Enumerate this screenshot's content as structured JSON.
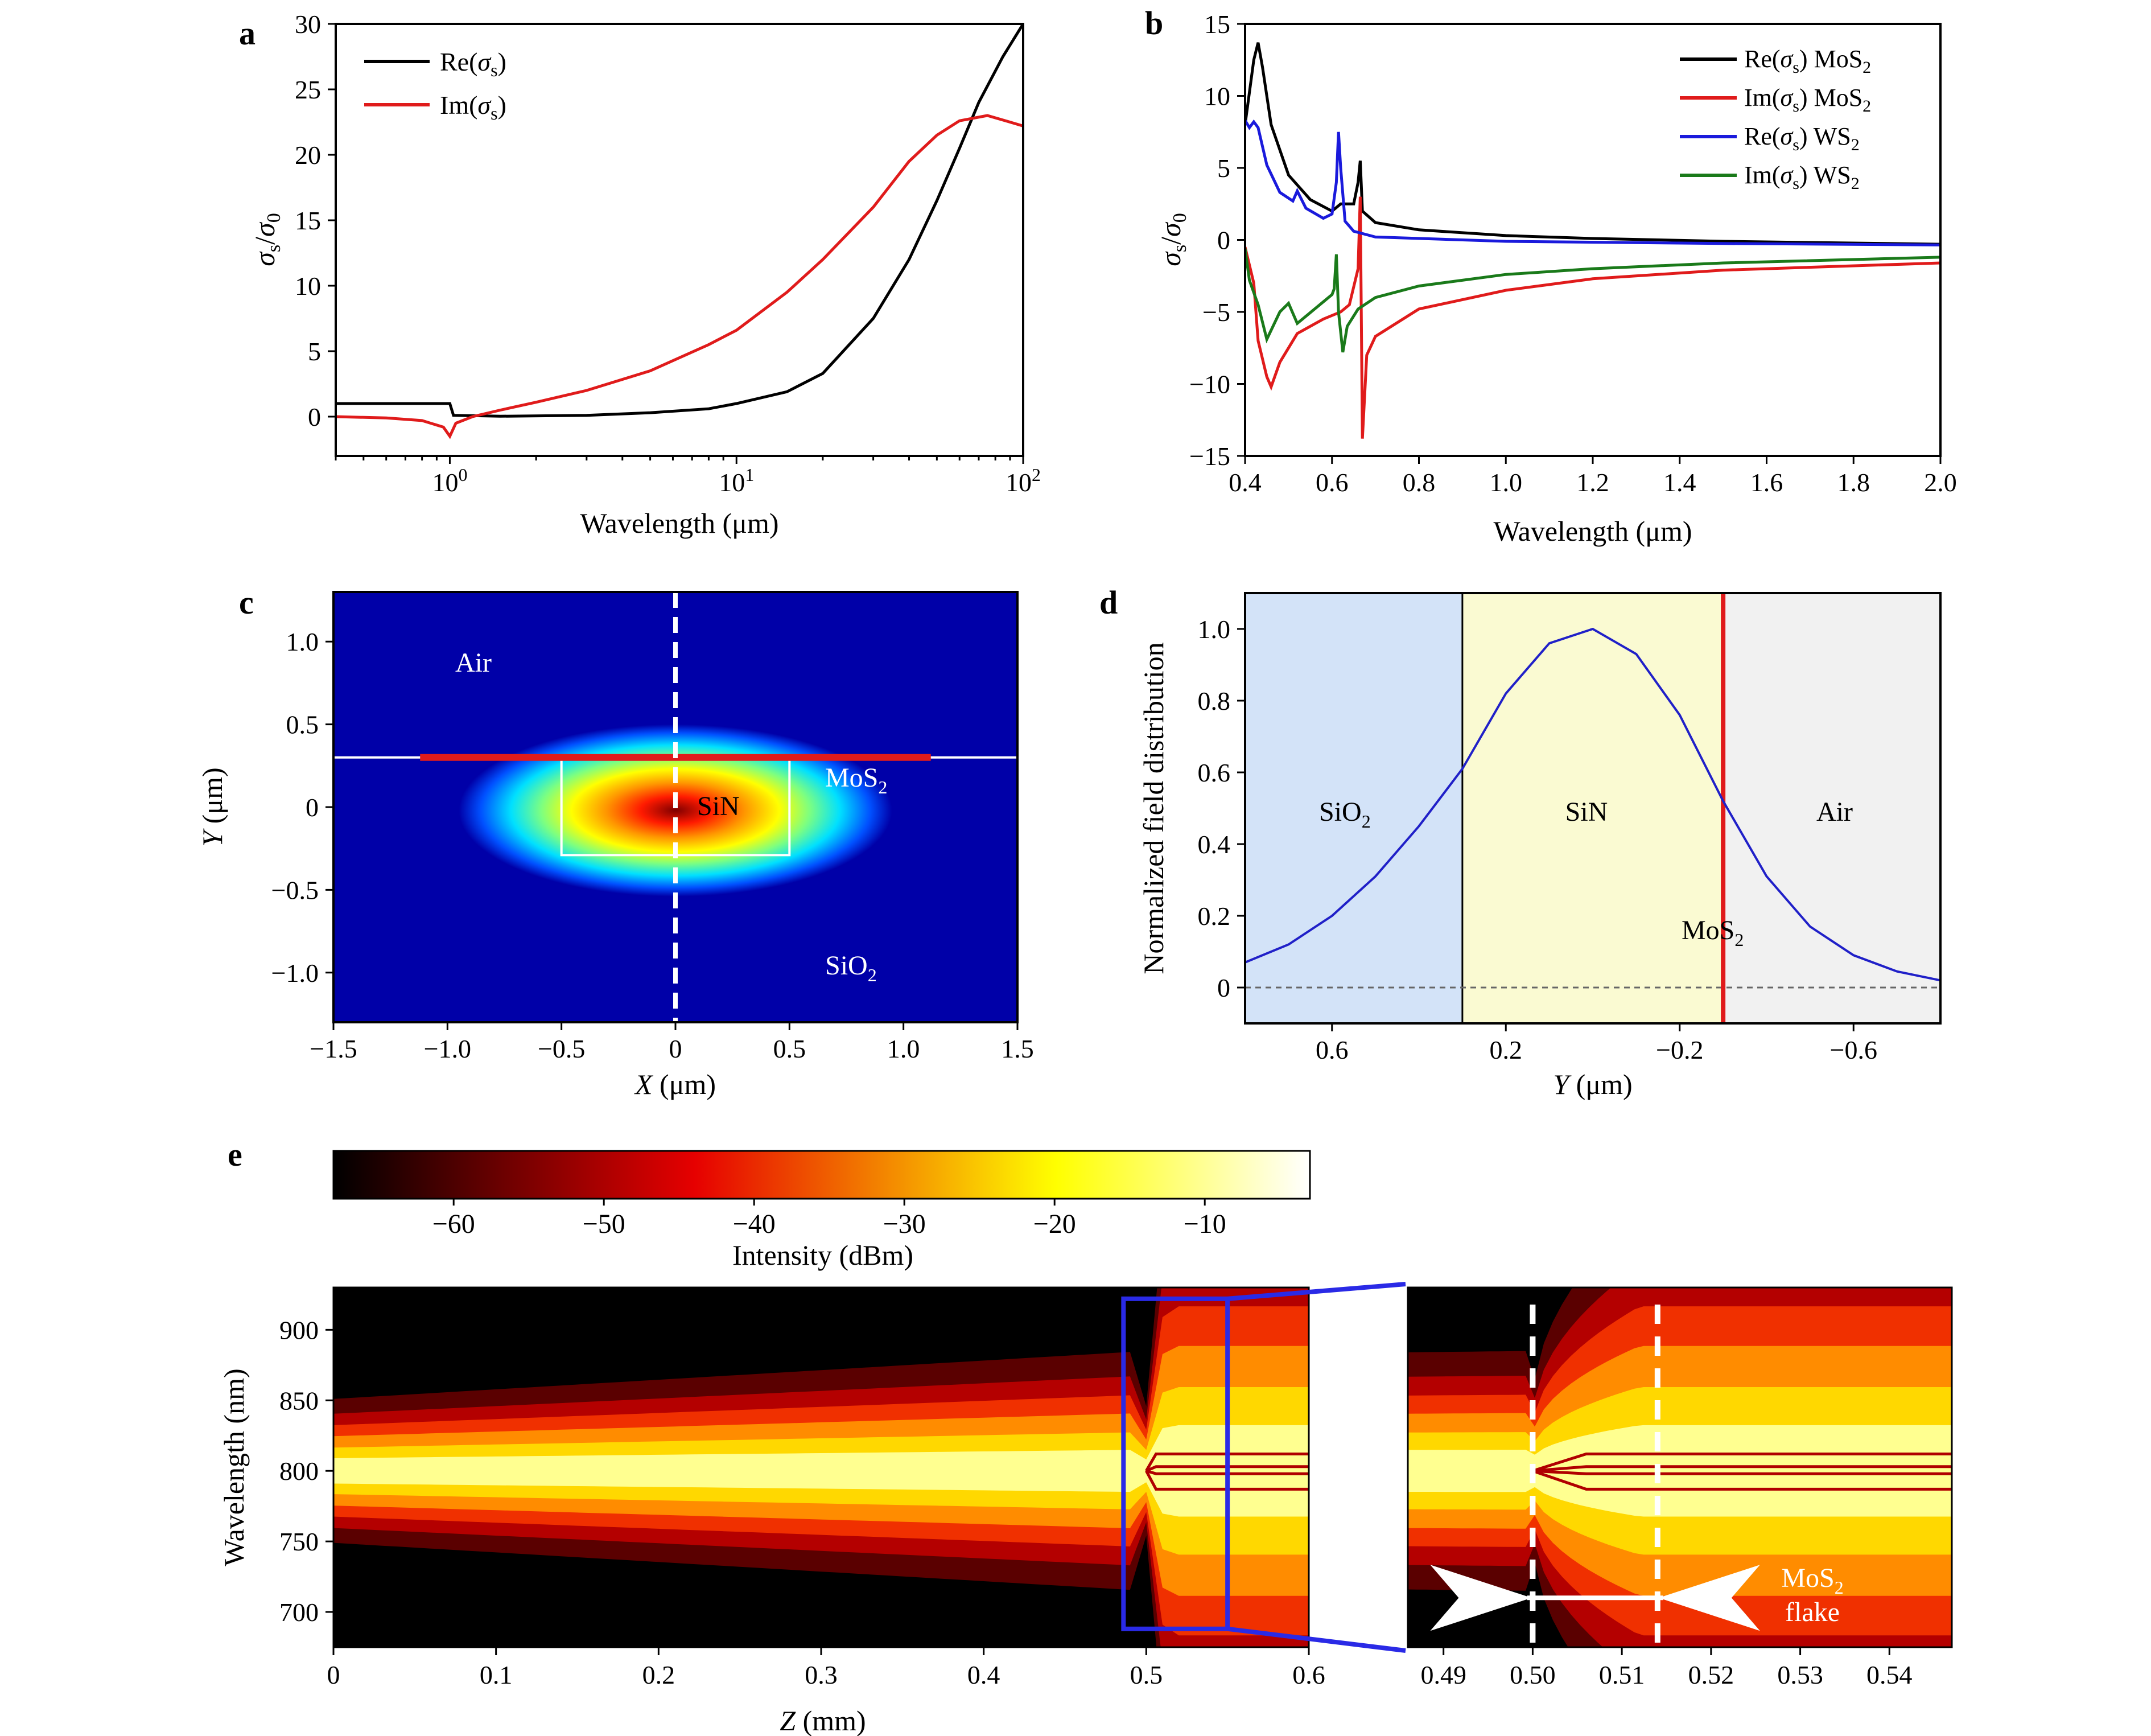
{
  "panel_labels": [
    "a",
    "b",
    "c",
    "d",
    "e"
  ],
  "chart_data": [
    {
      "panel": "a",
      "type": "line",
      "xscale": "log",
      "xlim": [
        0.4,
        100
      ],
      "ylim": [
        -3,
        30
      ],
      "xlabel": "Wavelength (μm)",
      "ylabel": "σs/σ0",
      "xtick_labels": [
        {
          "v": 1,
          "base": "10",
          "exp": "0"
        },
        {
          "v": 10,
          "base": "10",
          "exp": "1"
        },
        {
          "v": 100,
          "base": "10",
          "exp": "2"
        }
      ],
      "ytick_labels": [
        "0",
        "5",
        "10",
        "15",
        "20",
        "25",
        "30"
      ],
      "legend": "top-left",
      "series": [
        {
          "name": "Re(σs)",
          "color": "#000000",
          "points": [
            [
              0.4,
              1
            ],
            [
              1.0,
              1
            ],
            [
              1.03,
              0.1
            ],
            [
              1.5,
              0.03
            ],
            [
              3,
              0.1
            ],
            [
              5,
              0.3
            ],
            [
              8,
              0.6
            ],
            [
              10,
              1.0
            ],
            [
              15,
              1.9
            ],
            [
              20,
              3.3
            ],
            [
              30,
              7.5
            ],
            [
              40,
              12
            ],
            [
              50,
              16.5
            ],
            [
              60,
              20.5
            ],
            [
              70,
              24
            ],
            [
              85,
              27.5
            ],
            [
              100,
              30
            ]
          ]
        },
        {
          "name": "Im(σs)",
          "color": "#e01b1b",
          "points": [
            [
              0.4,
              0
            ],
            [
              0.6,
              -0.1
            ],
            [
              0.8,
              -0.3
            ],
            [
              0.95,
              -0.8
            ],
            [
              1.0,
              -1.5
            ],
            [
              1.05,
              -0.5
            ],
            [
              1.2,
              0
            ],
            [
              1.5,
              0.5
            ],
            [
              2,
              1.1
            ],
            [
              3,
              2.0
            ],
            [
              5,
              3.5
            ],
            [
              8,
              5.5
            ],
            [
              10,
              6.6
            ],
            [
              15,
              9.5
            ],
            [
              20,
              12
            ],
            [
              30,
              16
            ],
            [
              40,
              19.5
            ],
            [
              50,
              21.5
            ],
            [
              60,
              22.6
            ],
            [
              75,
              23
            ],
            [
              90,
              22.5
            ],
            [
              100,
              22.2
            ]
          ]
        }
      ]
    },
    {
      "panel": "b",
      "type": "line",
      "xlim": [
        0.4,
        2.0
      ],
      "ylim": [
        -15,
        15
      ],
      "xlabel": "Wavelength (μm)",
      "ylabel": "σs/σ0",
      "xtick_labels": [
        "0.4",
        "0.6",
        "0.8",
        "1.0",
        "1.2",
        "1.4",
        "1.6",
        "1.8",
        "2.0"
      ],
      "ytick_labels": [
        "−15",
        "−10",
        "−5",
        "0",
        "5",
        "10",
        "15"
      ],
      "legend": "top-right",
      "series": [
        {
          "name": "Re(σs) MoS2",
          "color": "#000000",
          "points": [
            [
              0.4,
              8
            ],
            [
              0.42,
              12.5
            ],
            [
              0.43,
              13.7
            ],
            [
              0.44,
              12
            ],
            [
              0.46,
              8
            ],
            [
              0.5,
              4.5
            ],
            [
              0.55,
              2.8
            ],
            [
              0.6,
              2.0
            ],
            [
              0.62,
              2.5
            ],
            [
              0.65,
              2.5
            ],
            [
              0.66,
              4
            ],
            [
              0.665,
              5.5
            ],
            [
              0.67,
              2
            ],
            [
              0.7,
              1.2
            ],
            [
              0.8,
              0.7
            ],
            [
              1.0,
              0.3
            ],
            [
              1.2,
              0.1
            ],
            [
              1.5,
              -0.1
            ],
            [
              2.0,
              -0.3
            ]
          ]
        },
        {
          "name": "Im(σs) MoS2",
          "color": "#e01b1b",
          "points": [
            [
              0.4,
              -0.5
            ],
            [
              0.42,
              -3
            ],
            [
              0.43,
              -7
            ],
            [
              0.45,
              -9.5
            ],
            [
              0.46,
              -10.2
            ],
            [
              0.48,
              -8.5
            ],
            [
              0.52,
              -6.5
            ],
            [
              0.58,
              -5.5
            ],
            [
              0.62,
              -5
            ],
            [
              0.64,
              -4.5
            ],
            [
              0.66,
              -2
            ],
            [
              0.665,
              3
            ],
            [
              0.67,
              -13.8
            ],
            [
              0.68,
              -8
            ],
            [
              0.7,
              -6.7
            ],
            [
              0.8,
              -4.8
            ],
            [
              1.0,
              -3.5
            ],
            [
              1.2,
              -2.7
            ],
            [
              1.5,
              -2.1
            ],
            [
              2.0,
              -1.6
            ]
          ]
        },
        {
          "name": "Re(σs) WS2",
          "color": "#1a1adc",
          "points": [
            [
              0.4,
              8.3
            ],
            [
              0.41,
              7.8
            ],
            [
              0.42,
              8.2
            ],
            [
              0.43,
              7.8
            ],
            [
              0.45,
              5.2
            ],
            [
              0.48,
              3.3
            ],
            [
              0.51,
              2.7
            ],
            [
              0.52,
              3.4
            ],
            [
              0.54,
              2.2
            ],
            [
              0.58,
              1.5
            ],
            [
              0.6,
              1.8
            ],
            [
              0.61,
              4
            ],
            [
              0.615,
              7.5
            ],
            [
              0.62,
              5
            ],
            [
              0.63,
              1.3
            ],
            [
              0.65,
              0.6
            ],
            [
              0.7,
              0.2
            ],
            [
              1.0,
              -0.1
            ],
            [
              1.5,
              -0.25
            ],
            [
              2.0,
              -0.35
            ]
          ]
        },
        {
          "name": "Im(σs) WS2",
          "color": "#1a7a1a",
          "points": [
            [
              0.4,
              -0.6
            ],
            [
              0.41,
              -2.8
            ],
            [
              0.43,
              -4.5
            ],
            [
              0.45,
              -6.9
            ],
            [
              0.48,
              -5
            ],
            [
              0.5,
              -4.4
            ],
            [
              0.52,
              -5.8
            ],
            [
              0.56,
              -4.8
            ],
            [
              0.6,
              -3.8
            ],
            [
              0.605,
              -3.4
            ],
            [
              0.61,
              -1
            ],
            [
              0.615,
              -5
            ],
            [
              0.625,
              -7.8
            ],
            [
              0.635,
              -6
            ],
            [
              0.66,
              -4.8
            ],
            [
              0.7,
              -4
            ],
            [
              0.8,
              -3.2
            ],
            [
              1.0,
              -2.4
            ],
            [
              1.2,
              -2.0
            ],
            [
              1.5,
              -1.6
            ],
            [
              2.0,
              -1.2
            ]
          ]
        }
      ]
    },
    {
      "panel": "c",
      "type": "heatmap",
      "xlim": [
        -1.5,
        1.5
      ],
      "ylim": [
        -1.3,
        1.3
      ],
      "xlabel": "X (μm)",
      "ylabel": "Y (μm)",
      "xtick_labels": [
        "−1.5",
        "−1.0",
        "−0.5",
        "0",
        "0.5",
        "1.0",
        "1.5"
      ],
      "ytick_labels": [
        "−1.0",
        "−0.5",
        "0",
        "0.5",
        "1.0"
      ],
      "annotations": [
        "Air",
        "SiN",
        "MoS2",
        "SiO2"
      ],
      "colormap": "jet",
      "mode_center": [
        0,
        -0.02
      ],
      "waveguide": {
        "x": [
          -0.5,
          0.5
        ],
        "y": [
          -0.29,
          0.3
        ]
      },
      "mos2_layer": {
        "y": 0.3,
        "x": [
          -1.12,
          1.12
        ],
        "color": "#e01b1b"
      },
      "cut_line_x": 0
    },
    {
      "panel": "d",
      "type": "line",
      "xlim": [
        0.8,
        -0.8
      ],
      "ylim": [
        -0.1,
        1.1
      ],
      "xlabel": "Y (μm)",
      "ylabel": "Normalized field distribution",
      "xtick_labels": [
        "0.6",
        "0.2",
        "−0.2",
        "−0.6"
      ],
      "ytick_labels": [
        "0",
        "0.2",
        "0.4",
        "0.6",
        "0.8",
        "1.0"
      ],
      "regions": [
        {
          "label": "SiO2",
          "from": 0.8,
          "to": 0.3,
          "color": "#d3e3f8"
        },
        {
          "label": "SiN",
          "from": 0.3,
          "to": -0.3,
          "color": "#fafad2"
        },
        {
          "label": "Air",
          "from": -0.3,
          "to": -0.8,
          "color": "#f1f1f1"
        }
      ],
      "mos2_position": -0.3,
      "mos2_label": "MoS2",
      "series": [
        {
          "name": "",
          "color": "#2020c8",
          "points": [
            [
              0.8,
              0.07
            ],
            [
              0.7,
              0.12
            ],
            [
              0.6,
              0.2
            ],
            [
              0.5,
              0.31
            ],
            [
              0.4,
              0.45
            ],
            [
              0.3,
              0.61
            ],
            [
              0.2,
              0.82
            ],
            [
              0.1,
              0.96
            ],
            [
              0.0,
              1.0
            ],
            [
              -0.1,
              0.93
            ],
            [
              -0.2,
              0.76
            ],
            [
              -0.3,
              0.52
            ],
            [
              -0.4,
              0.31
            ],
            [
              -0.5,
              0.17
            ],
            [
              -0.6,
              0.09
            ],
            [
              -0.7,
              0.045
            ],
            [
              -0.8,
              0.02
            ]
          ]
        }
      ]
    },
    {
      "panel": "e",
      "type": "heatmap",
      "colorbar": {
        "label": "Intensity (dBm)",
        "ticks": [
          "−60",
          "−50",
          "−40",
          "−30",
          "−20",
          "−10"
        ],
        "range": [
          -68,
          -3
        ],
        "colormap": "hot"
      },
      "main": {
        "xlim": [
          0,
          0.6
        ],
        "ylim": [
          675,
          930
        ],
        "xlabel": "Z (mm)",
        "ylabel": "Wavelength (nm)",
        "xtick_labels": [
          "0",
          "0.1",
          "0.2",
          "0.3",
          "0.4",
          "0.5",
          "0.6"
        ],
        "ytick_labels": [
          "700",
          "750",
          "800",
          "850",
          "900"
        ],
        "zoom_box": {
          "x": [
            0.486,
            0.55
          ],
          "y": [
            688,
            922
          ]
        }
      },
      "zoom": {
        "xlim": [
          0.486,
          0.547
        ],
        "xtick_labels": [
          "0.49",
          "0.50",
          "0.51",
          "0.52",
          "0.53",
          "0.54"
        ],
        "flake_start": 0.5,
        "flake_end": 0.514,
        "annotation_line1": "MoS2",
        "annotation_line2": "flake"
      },
      "model": {
        "center": 800,
        "width_start": 30,
        "width_slope": 20,
        "flake_z": 0.5,
        "broaden_width": 108,
        "split_lines": [
          787,
          798,
          803,
          812
        ]
      }
    }
  ]
}
